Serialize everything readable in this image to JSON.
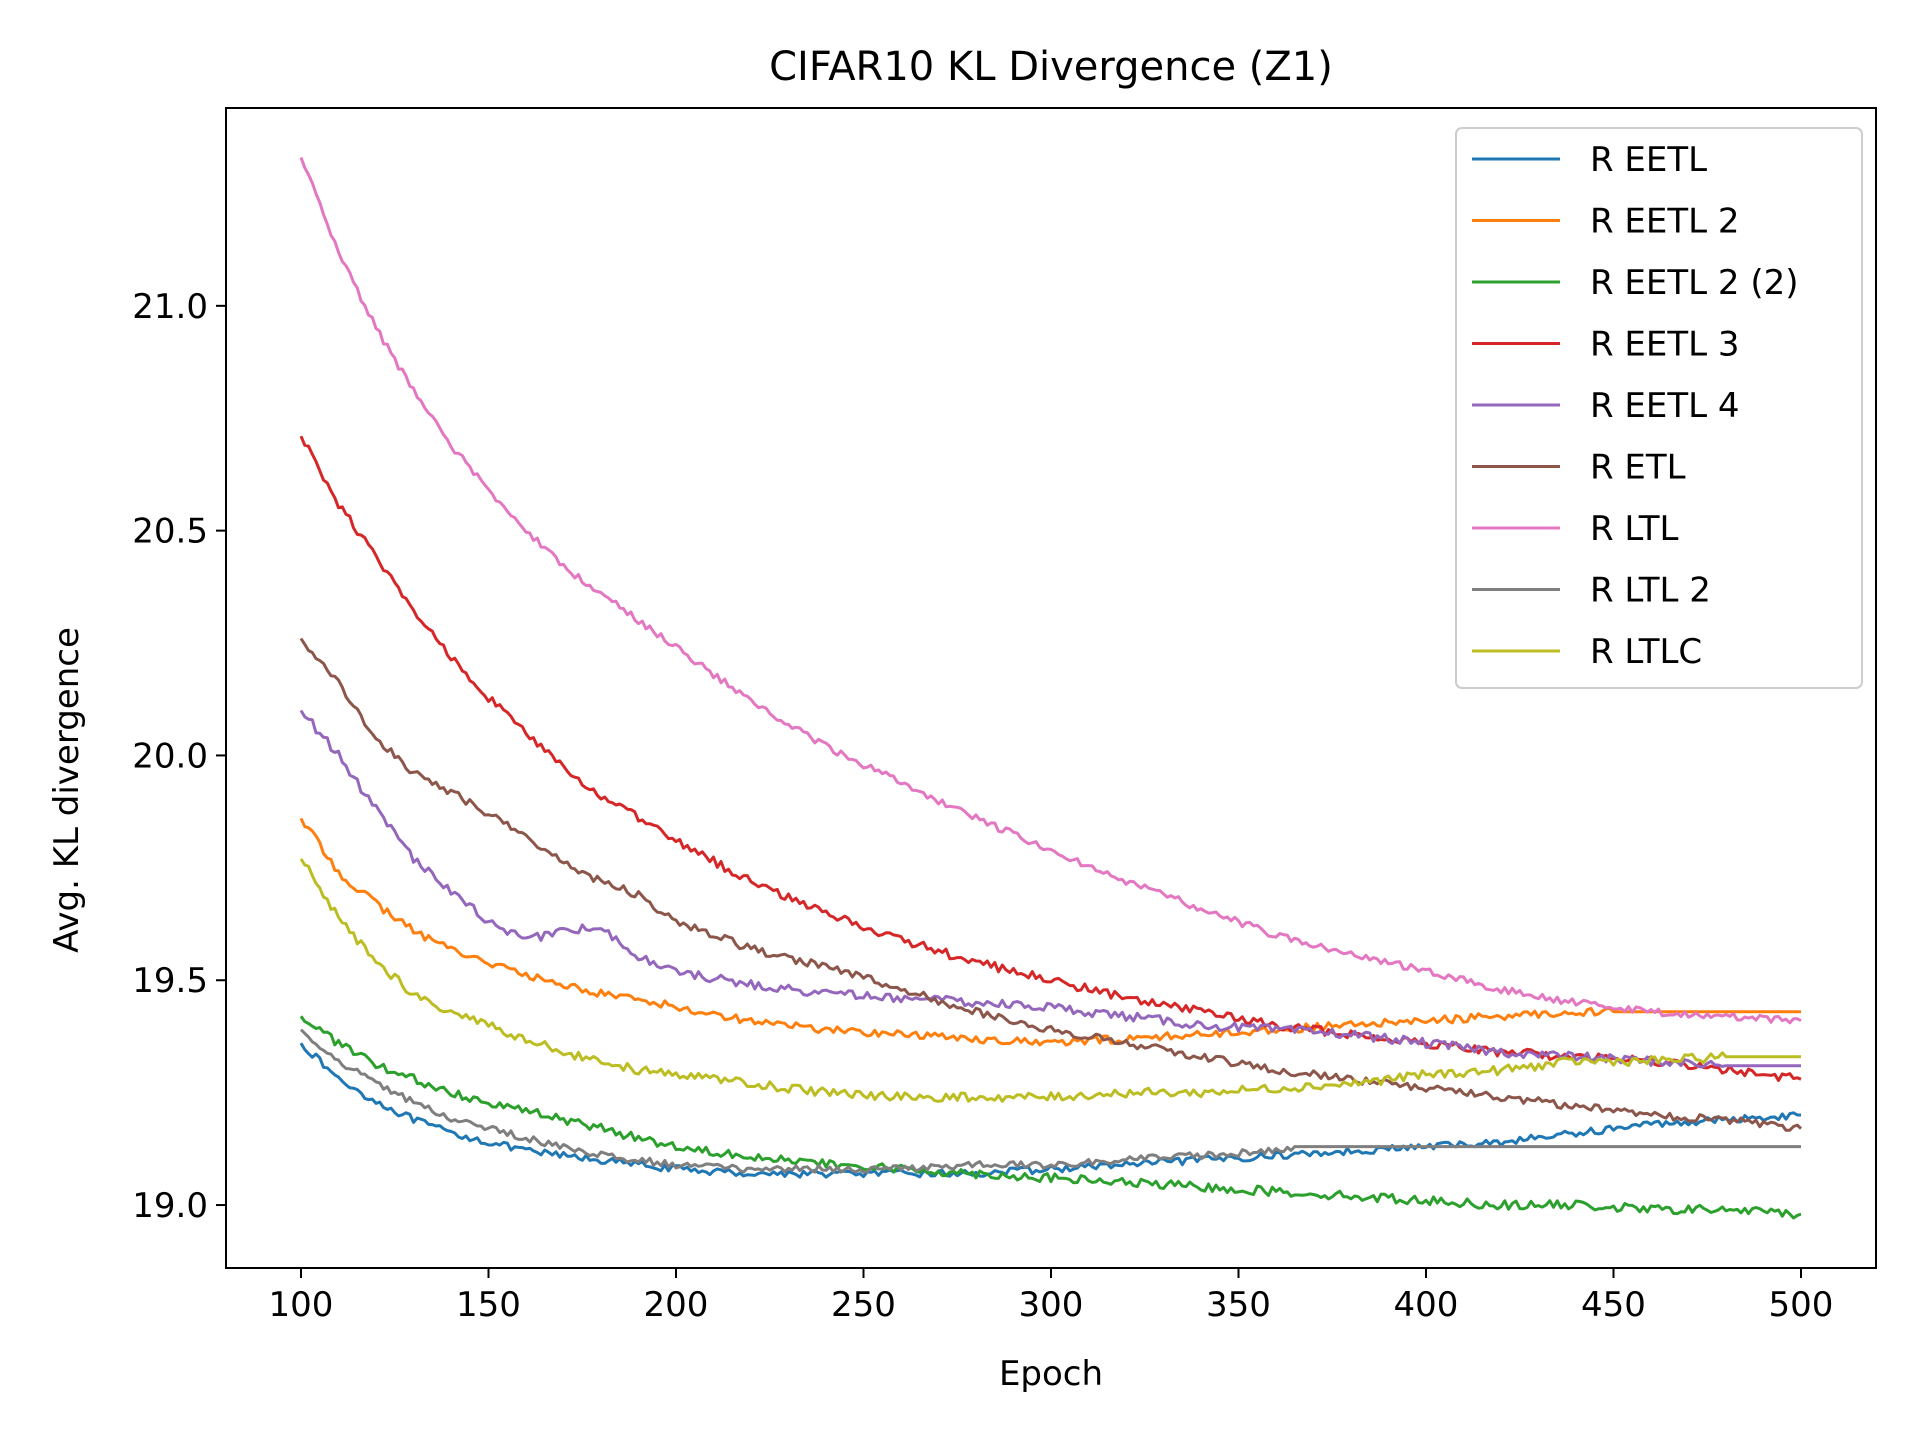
{
  "chart_data": {
    "type": "line",
    "title": "CIFAR10 KL Divergence (Z1)",
    "xlabel": "Epoch",
    "ylabel": "Avg. KL divergence",
    "xlim": [
      80,
      520
    ],
    "ylim": [
      18.86,
      21.44
    ],
    "x_ticks": [
      100,
      150,
      200,
      250,
      300,
      350,
      400,
      450,
      500
    ],
    "x_tick_labels": [
      "100",
      "150",
      "200",
      "250",
      "300",
      "350",
      "400",
      "450",
      "500"
    ],
    "y_ticks": [
      19.0,
      19.5,
      20.0,
      20.5,
      21.0
    ],
    "y_tick_labels": [
      "19.0",
      "19.5",
      "20.0",
      "20.5",
      "21.0"
    ],
    "grid": false,
    "legend_position": "top-right",
    "series": [
      {
        "name": "R EETL",
        "color": "#1f77b4",
        "x": [
          100,
          110,
          120,
          130,
          140,
          150,
          160,
          170,
          180,
          190,
          200,
          220,
          240,
          260,
          280,
          300,
          320,
          340,
          360,
          380,
          400,
          420,
          440,
          460,
          480,
          500
        ],
        "y": [
          19.36,
          19.28,
          19.23,
          19.19,
          19.16,
          19.14,
          19.12,
          19.11,
          19.1,
          19.09,
          19.08,
          19.07,
          19.07,
          19.07,
          19.07,
          19.08,
          19.09,
          19.1,
          19.11,
          19.12,
          19.13,
          19.14,
          19.16,
          19.18,
          19.19,
          19.2
        ],
        "noise": 0.008
      },
      {
        "name": "R EETL 2",
        "color": "#ff7f0e",
        "x": [
          100,
          110,
          120,
          130,
          140,
          150,
          160,
          170,
          180,
          190,
          200,
          220,
          240,
          260,
          280,
          300,
          320,
          340,
          360,
          380,
          400,
          420,
          440,
          445,
          450,
          500
        ],
        "y": [
          19.86,
          19.74,
          19.67,
          19.61,
          19.57,
          19.54,
          19.51,
          19.49,
          19.47,
          19.46,
          19.44,
          19.41,
          19.39,
          19.38,
          19.37,
          19.36,
          19.37,
          19.38,
          19.39,
          19.4,
          19.41,
          19.42,
          19.43,
          19.43,
          19.43,
          19.43
        ],
        "noise": 0.009
      },
      {
        "name": "R EETL 2 (2)",
        "color": "#2ca02c",
        "x": [
          100,
          110,
          120,
          130,
          140,
          150,
          160,
          170,
          180,
          190,
          200,
          220,
          240,
          260,
          280,
          300,
          320,
          340,
          360,
          380,
          400,
          420,
          440,
          460,
          480,
          500
        ],
        "y": [
          19.42,
          19.36,
          19.31,
          19.28,
          19.25,
          19.23,
          19.21,
          19.19,
          19.17,
          19.15,
          19.13,
          19.11,
          19.09,
          19.08,
          19.07,
          19.06,
          19.05,
          19.04,
          19.03,
          19.02,
          19.01,
          19.0,
          19.0,
          18.99,
          18.99,
          18.98
        ],
        "noise": 0.01
      },
      {
        "name": "R EETL 3",
        "color": "#d62728",
        "x": [
          100,
          110,
          120,
          130,
          140,
          150,
          160,
          170,
          180,
          190,
          200,
          220,
          240,
          260,
          280,
          300,
          320,
          340,
          360,
          380,
          400,
          420,
          440,
          460,
          480,
          500
        ],
        "y": [
          20.71,
          20.56,
          20.44,
          20.32,
          20.22,
          20.13,
          20.05,
          19.97,
          19.91,
          19.86,
          19.81,
          19.72,
          19.65,
          19.59,
          19.54,
          19.5,
          19.46,
          19.43,
          19.4,
          19.38,
          19.36,
          19.34,
          19.33,
          19.32,
          19.3,
          19.28
        ],
        "noise": 0.01
      },
      {
        "name": "R EETL 4",
        "color": "#9467bd",
        "x": [
          100,
          110,
          120,
          130,
          140,
          150,
          160,
          170,
          180,
          190,
          200,
          220,
          240,
          260,
          280,
          300,
          320,
          340,
          360,
          380,
          400,
          420,
          440,
          460,
          480,
          500
        ],
        "y": [
          20.1,
          20.0,
          19.88,
          19.77,
          19.7,
          19.63,
          19.59,
          19.61,
          19.62,
          19.55,
          19.52,
          19.49,
          19.47,
          19.46,
          19.45,
          19.44,
          19.42,
          19.4,
          19.39,
          19.38,
          19.36,
          19.34,
          19.33,
          19.32,
          19.31,
          19.31
        ],
        "noise": 0.01
      },
      {
        "name": "R ETL",
        "color": "#8c564b",
        "x": [
          100,
          110,
          120,
          130,
          140,
          150,
          160,
          170,
          180,
          190,
          200,
          220,
          240,
          260,
          280,
          300,
          320,
          340,
          360,
          380,
          400,
          420,
          440,
          460,
          480,
          500
        ],
        "y": [
          20.26,
          20.16,
          20.04,
          19.96,
          19.92,
          19.87,
          19.82,
          19.76,
          19.72,
          19.69,
          19.63,
          19.57,
          19.53,
          19.48,
          19.43,
          19.39,
          19.36,
          19.33,
          19.3,
          19.28,
          19.26,
          19.24,
          19.22,
          19.2,
          19.19,
          19.17
        ],
        "noise": 0.009
      },
      {
        "name": "R LTL",
        "color": "#e377c2",
        "x": [
          100,
          110,
          120,
          130,
          140,
          150,
          160,
          170,
          180,
          190,
          200,
          220,
          240,
          260,
          280,
          300,
          320,
          340,
          360,
          380,
          400,
          420,
          440,
          460,
          480,
          500
        ],
        "y": [
          21.33,
          21.12,
          20.95,
          20.81,
          20.69,
          20.59,
          20.5,
          20.42,
          20.36,
          20.3,
          20.24,
          20.12,
          20.02,
          19.94,
          19.86,
          19.79,
          19.72,
          19.66,
          19.6,
          19.56,
          19.52,
          19.48,
          19.45,
          19.43,
          19.42,
          19.41
        ],
        "noise": 0.008
      },
      {
        "name": "R LTL 2",
        "color": "#7f7f7f",
        "x": [
          100,
          110,
          120,
          130,
          140,
          150,
          160,
          170,
          180,
          190,
          200,
          220,
          240,
          260,
          280,
          300,
          320,
          340,
          360,
          365,
          500
        ],
        "y": [
          19.39,
          19.32,
          19.27,
          19.23,
          19.19,
          19.17,
          19.15,
          19.13,
          19.11,
          19.1,
          19.09,
          19.08,
          19.08,
          19.08,
          19.09,
          19.09,
          19.1,
          19.11,
          19.12,
          19.13,
          19.13
        ],
        "noise": 0.008
      },
      {
        "name": "R LTLC",
        "color": "#bcbd22",
        "x": [
          100,
          110,
          120,
          130,
          140,
          150,
          160,
          170,
          180,
          190,
          200,
          220,
          240,
          260,
          280,
          300,
          320,
          340,
          360,
          380,
          400,
          420,
          440,
          460,
          480,
          500
        ],
        "y": [
          19.77,
          19.64,
          19.54,
          19.47,
          19.43,
          19.4,
          19.37,
          19.34,
          19.32,
          19.3,
          19.29,
          19.27,
          19.25,
          19.24,
          19.24,
          19.24,
          19.25,
          19.25,
          19.26,
          19.27,
          19.29,
          19.3,
          19.32,
          19.32,
          19.33,
          19.33
        ],
        "noise": 0.01
      }
    ]
  }
}
